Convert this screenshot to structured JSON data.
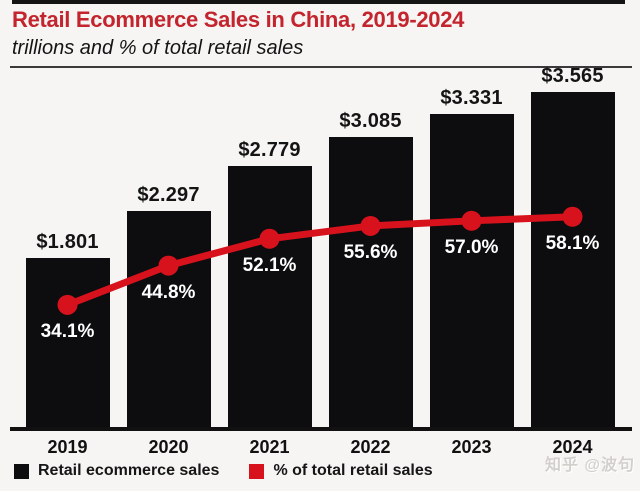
{
  "header": {
    "title": "Retail Ecommerce Sales in China, 2019-2024",
    "subtitle": "trillions and % of total retail sales"
  },
  "chart_data": {
    "type": "bar",
    "title": "Retail Ecommerce Sales in China, 2019-2024",
    "subtitle": "trillions and % of total retail sales",
    "categories": [
      "2019",
      "2020",
      "2021",
      "2022",
      "2023",
      "2024"
    ],
    "series": [
      {
        "name": "Retail ecommerce sales",
        "type": "bar",
        "unit": "USD trillions",
        "values": [
          1.801,
          2.297,
          2.779,
          3.085,
          3.331,
          3.565
        ],
        "labels": [
          "$1.801",
          "$2.297",
          "$2.779",
          "$3.085",
          "$3.331",
          "$3.565"
        ],
        "color": "#0d0c0e"
      },
      {
        "name": "% of total retail sales",
        "type": "line",
        "unit": "percent",
        "values": [
          34.1,
          44.8,
          52.1,
          55.6,
          57.0,
          58.1
        ],
        "labels": [
          "34.1%",
          "44.8%",
          "52.1%",
          "55.6%",
          "57.0%",
          "58.1%"
        ],
        "color": "#d8121d"
      }
    ],
    "bar_axis_range": [
      0,
      3.8
    ],
    "line_axis_range": [
      0,
      100
    ],
    "grid": false,
    "legend_position": "bottom-left"
  },
  "legend": [
    {
      "label": "Retail ecommerce sales",
      "color": "#0d0c0e"
    },
    {
      "label": "% of total retail sales",
      "color": "#d8121d"
    }
  ],
  "watermark": "知乎 @波句",
  "colors": {
    "background": "#f6f5f3",
    "title_red": "#c3242d",
    "line_red": "#d8121d",
    "bar_black": "#0d0c0e"
  }
}
